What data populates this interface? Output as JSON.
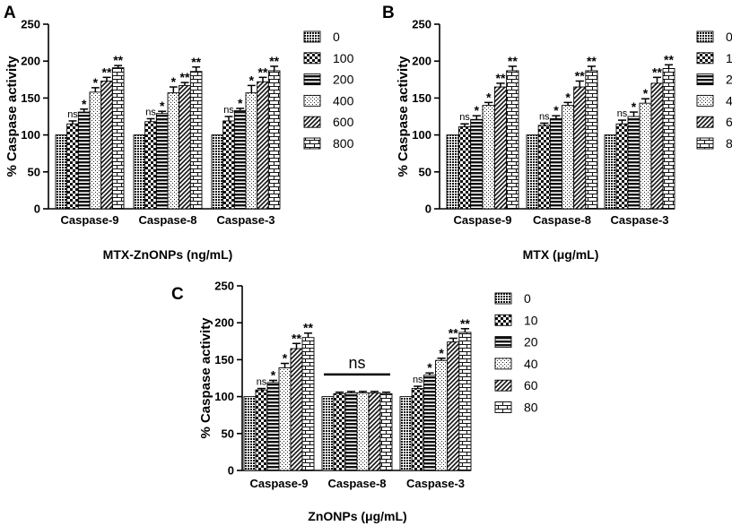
{
  "chart_data": [
    {
      "panel": "A",
      "type": "bar",
      "categories": [
        "Caspase-9",
        "Caspase-8",
        "Caspase-3"
      ],
      "ylabel": "% Caspase activity",
      "xlabel": "MTX-ZnONPs (ng/mL)",
      "ylim": [
        0,
        250
      ],
      "yticks": [
        "0",
        "50",
        "100",
        "150",
        "200",
        "250"
      ],
      "legend_position": "right",
      "series": [
        {
          "name": "0",
          "pattern": "p0",
          "values": [
            100,
            100,
            100
          ],
          "errors": [
            0,
            0,
            0
          ],
          "sig": [
            "",
            "",
            ""
          ]
        },
        {
          "name": "100",
          "pattern": "p1",
          "values": [
            115,
            118,
            119
          ],
          "errors": [
            4,
            4,
            6
          ],
          "sig": [
            "ns",
            "ns",
            "ns"
          ]
        },
        {
          "name": "200",
          "pattern": "p2",
          "values": [
            131,
            129,
            133
          ],
          "errors": [
            4,
            3,
            3
          ],
          "sig": [
            "*",
            "*",
            "*"
          ]
        },
        {
          "name": "400",
          "pattern": "p3",
          "values": [
            158,
            157,
            157
          ],
          "errors": [
            6,
            8,
            10
          ],
          "sig": [
            "*",
            "*",
            "*"
          ]
        },
        {
          "name": "600",
          "pattern": "p4",
          "values": [
            173,
            167,
            172
          ],
          "errors": [
            5,
            4,
            6
          ],
          "sig": [
            "**",
            "**",
            "**"
          ]
        },
        {
          "name": "800",
          "pattern": "p5",
          "values": [
            191,
            186,
            187
          ],
          "errors": [
            3,
            6,
            6
          ],
          "sig": [
            "**",
            "**",
            "**"
          ]
        }
      ],
      "bracket": null
    },
    {
      "panel": "B",
      "type": "bar",
      "categories": [
        "Caspase-9",
        "Caspase-8",
        "Caspase-3"
      ],
      "ylabel": "% Caspase activity",
      "xlabel": "MTX (μg/mL)",
      "ylim": [
        0,
        250
      ],
      "yticks": [
        "0",
        "50",
        "100",
        "150",
        "200",
        "250"
      ],
      "legend_position": "right",
      "series": [
        {
          "name": "0",
          "pattern": "p0",
          "values": [
            100,
            100,
            100
          ],
          "errors": [
            0,
            0,
            0
          ],
          "sig": [
            "",
            "",
            ""
          ]
        },
        {
          "name": "1",
          "pattern": "p1",
          "values": [
            111,
            113,
            115
          ],
          "errors": [
            4,
            3,
            5
          ],
          "sig": [
            "ns",
            "ns",
            "ns"
          ]
        },
        {
          "name": "2",
          "pattern": "p2",
          "values": [
            121,
            122,
            125
          ],
          "errors": [
            5,
            4,
            6
          ],
          "sig": [
            "*",
            "*",
            "*"
          ]
        },
        {
          "name": "4",
          "pattern": "p3",
          "values": [
            140,
            140,
            143
          ],
          "errors": [
            4,
            4,
            6
          ],
          "sig": [
            "*",
            "*",
            "*"
          ]
        },
        {
          "name": "6",
          "pattern": "p4",
          "values": [
            165,
            165,
            170
          ],
          "errors": [
            5,
            8,
            8
          ],
          "sig": [
            "**",
            "**",
            "**"
          ]
        },
        {
          "name": "8",
          "pattern": "p5",
          "values": [
            187,
            187,
            190
          ],
          "errors": [
            6,
            6,
            5
          ],
          "sig": [
            "**",
            "**",
            "**"
          ]
        }
      ],
      "bracket": null
    },
    {
      "panel": "C",
      "type": "bar",
      "categories": [
        "Caspase-9",
        "Caspase-8",
        "Caspase-3"
      ],
      "ylabel": "% Caspase activity",
      "xlabel": "ZnONPs (μg/mL)",
      "ylim": [
        0,
        250
      ],
      "yticks": [
        "0",
        "50",
        "100",
        "150",
        "200",
        "250"
      ],
      "legend_position": "right",
      "series": [
        {
          "name": "0",
          "pattern": "p0",
          "values": [
            100,
            100,
            100
          ],
          "errors": [
            0,
            0,
            0
          ],
          "sig": [
            "",
            "",
            ""
          ]
        },
        {
          "name": "10",
          "pattern": "p1",
          "values": [
            109,
            104,
            111
          ],
          "errors": [
            2,
            2,
            3
          ],
          "sig": [
            "ns",
            "",
            "ns"
          ]
        },
        {
          "name": "20",
          "pattern": "p2",
          "values": [
            119,
            105,
            129
          ],
          "errors": [
            3,
            2,
            3
          ],
          "sig": [
            "*",
            "",
            "*"
          ]
        },
        {
          "name": "40",
          "pattern": "p3",
          "values": [
            139,
            105,
            149
          ],
          "errors": [
            6,
            2,
            3
          ],
          "sig": [
            "*",
            "",
            "*"
          ]
        },
        {
          "name": "60",
          "pattern": "p4",
          "values": [
            165,
            105,
            174
          ],
          "errors": [
            7,
            2,
            5
          ],
          "sig": [
            "**",
            "",
            "**"
          ]
        },
        {
          "name": "80",
          "pattern": "p5",
          "values": [
            180,
            104,
            187
          ],
          "errors": [
            6,
            2,
            5
          ],
          "sig": [
            "**",
            "",
            "**"
          ]
        }
      ],
      "bracket": {
        "category": 1,
        "label": "ns"
      }
    }
  ]
}
